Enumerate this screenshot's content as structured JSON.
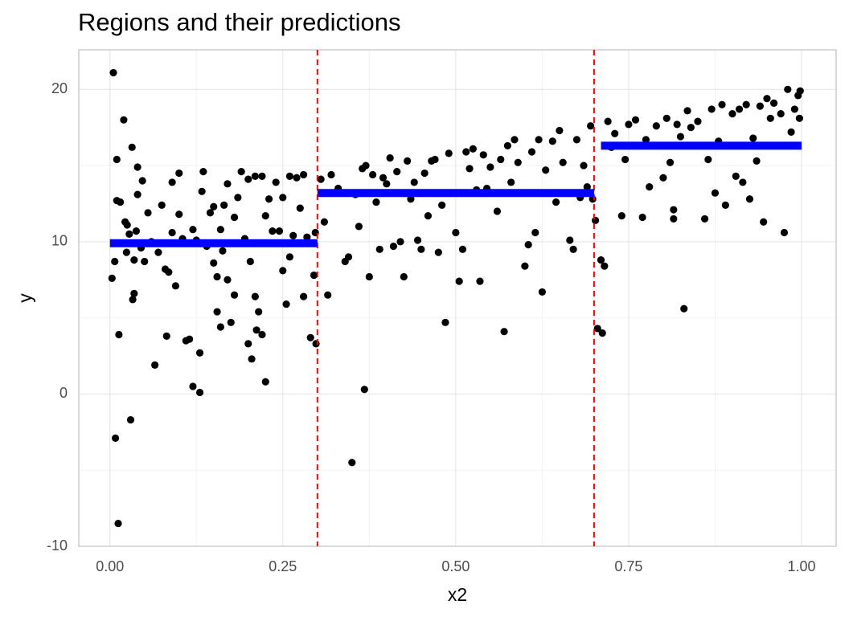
{
  "chart_data": {
    "type": "scatter",
    "title": "Regions and their predictions",
    "x_label": "x2",
    "y_label": "y",
    "color": "#000000",
    "x": [
      0.005,
      0.003,
      0.007,
      0.008,
      0.01,
      0.01,
      0.012,
      0.013,
      0.015,
      0.02,
      0.022,
      0.024,
      0.025,
      0.028,
      0.03,
      0.032,
      0.033,
      0.035,
      0.035,
      0.038,
      0.04,
      0.04,
      0.045,
      0.047,
      0.05,
      0.055,
      0.06,
      0.065,
      0.07,
      0.075,
      0.08,
      0.082,
      0.085,
      0.09,
      0.09,
      0.095,
      0.1,
      0.1,
      0.105,
      0.11,
      0.115,
      0.12,
      0.12,
      0.125,
      0.13,
      0.13,
      0.133,
      0.135,
      0.14,
      0.145,
      0.15,
      0.15,
      0.155,
      0.155,
      0.16,
      0.16,
      0.163,
      0.165,
      0.17,
      0.17,
      0.175,
      0.18,
      0.18,
      0.185,
      0.19,
      0.19,
      0.195,
      0.2,
      0.2,
      0.203,
      0.205,
      0.21,
      0.21,
      0.212,
      0.215,
      0.22,
      0.22,
      0.225,
      0.225,
      0.23,
      0.235,
      0.24,
      0.245,
      0.25,
      0.25,
      0.255,
      0.26,
      0.26,
      0.265,
      0.27,
      0.275,
      0.28,
      0.28,
      0.285,
      0.29,
      0.295,
      0.298,
      0.297,
      0.305,
      0.31,
      0.315,
      0.32,
      0.33,
      0.34,
      0.345,
      0.35,
      0.355,
      0.36,
      0.365,
      0.368,
      0.37,
      0.375,
      0.38,
      0.385,
      0.39,
      0.395,
      0.4,
      0.405,
      0.41,
      0.415,
      0.42,
      0.425,
      0.43,
      0.435,
      0.44,
      0.445,
      0.45,
      0.455,
      0.46,
      0.465,
      0.47,
      0.475,
      0.48,
      0.485,
      0.49,
      0.5,
      0.505,
      0.51,
      0.515,
      0.52,
      0.525,
      0.53,
      0.535,
      0.54,
      0.545,
      0.55,
      0.56,
      0.565,
      0.57,
      0.575,
      0.58,
      0.585,
      0.59,
      0.6,
      0.605,
      0.61,
      0.615,
      0.62,
      0.625,
      0.63,
      0.64,
      0.645,
      0.65,
      0.655,
      0.66,
      0.665,
      0.67,
      0.675,
      0.68,
      0.685,
      0.69,
      0.695,
      0.698,
      0.702,
      0.705,
      0.71,
      0.712,
      0.715,
      0.72,
      0.725,
      0.73,
      0.74,
      0.745,
      0.75,
      0.76,
      0.77,
      0.775,
      0.78,
      0.79,
      0.8,
      0.805,
      0.81,
      0.815,
      0.815,
      0.82,
      0.825,
      0.83,
      0.835,
      0.84,
      0.85,
      0.86,
      0.865,
      0.87,
      0.875,
      0.88,
      0.885,
      0.89,
      0.9,
      0.905,
      0.91,
      0.915,
      0.92,
      0.925,
      0.93,
      0.935,
      0.94,
      0.945,
      0.95,
      0.955,
      0.96,
      0.97,
      0.975,
      0.98,
      0.985,
      0.99,
      0.995,
      0.998,
      0.997
    ],
    "values": [
      21.1,
      7.6,
      8.7,
      -2.9,
      15.4,
      12.7,
      -8.5,
      3.9,
      12.6,
      18,
      11.3,
      9.3,
      11.1,
      10.5,
      -1.7,
      16.2,
      6.2,
      8.8,
      6.6,
      10.7,
      13.1,
      14.9,
      9.6,
      14,
      8.7,
      11.9,
      10,
      1.9,
      9.3,
      12.4,
      8.2,
      3.8,
      8,
      13.9,
      10.6,
      7.1,
      14.5,
      11.8,
      10.2,
      3.5,
      3.6,
      0.5,
      10.8,
      10.1,
      2.7,
      0.1,
      13.3,
      14.6,
      9.7,
      11.9,
      8.6,
      12.3,
      5.4,
      7.7,
      4.4,
      10.8,
      9.4,
      12.4,
      13.8,
      7.5,
      4.7,
      6.5,
      11.6,
      12.9,
      14.6,
      9.9,
      10.2,
      3.3,
      14.1,
      8.7,
      2.3,
      6.4,
      14.3,
      4.2,
      5.4,
      3.9,
      14.3,
      0.8,
      11.7,
      12.8,
      10.7,
      13.9,
      10.7,
      8.1,
      12.9,
      5.9,
      14.3,
      9,
      10.4,
      14.2,
      12.2,
      14.4,
      6.4,
      10.3,
      3.7,
      7.8,
      3.3,
      10.6,
      14.1,
      11.3,
      6.5,
      14.4,
      13.5,
      8.7,
      9,
      -4.5,
      13.1,
      11,
      14.8,
      0.3,
      15,
      7.7,
      14.4,
      12.6,
      9.5,
      14.2,
      13.8,
      15.5,
      9.7,
      14.6,
      10,
      7.7,
      15.3,
      12.8,
      13.9,
      10.1,
      9.5,
      14.5,
      11.7,
      15.3,
      15.4,
      9.3,
      12.4,
      4.7,
      15.8,
      10.6,
      7.4,
      9.5,
      15.9,
      14.8,
      16.1,
      13.4,
      7.4,
      15.7,
      13.5,
      14.9,
      12,
      15.4,
      4.1,
      16.3,
      13.9,
      16.7,
      15.2,
      8.4,
      9.8,
      15.9,
      10.6,
      16.7,
      6.7,
      14.7,
      16.6,
      12.6,
      17.3,
      15.2,
      13.2,
      10.1,
      9.5,
      16.7,
      12.9,
      15,
      13.6,
      17.6,
      12.8,
      11.4,
      4.3,
      8.8,
      4,
      8.4,
      17.9,
      16.2,
      17.1,
      11.7,
      15.4,
      17.7,
      18,
      11.6,
      16.7,
      13.6,
      17.6,
      14.2,
      18.1,
      15.2,
      12.1,
      11.5,
      17.7,
      16.9,
      5.6,
      18.6,
      17.5,
      17.9,
      11.5,
      15.4,
      18.7,
      13.2,
      16.6,
      19,
      12.4,
      18.4,
      14.3,
      18.7,
      13.9,
      19,
      12.8,
      16.8,
      15.3,
      18.9,
      11.3,
      19.4,
      18.1,
      19.1,
      18.4,
      10.6,
      20,
      17.2,
      18.7,
      19.6,
      19.9,
      18.1
    ],
    "predictions": {
      "color": "#0000ff",
      "segments": [
        {
          "x": [
            0,
            0.3
          ],
          "y": 9.9
        },
        {
          "x": [
            0.3,
            0.7
          ],
          "y": 13.2
        },
        {
          "x": [
            0.71,
            1.0
          ],
          "y": 16.3
        }
      ]
    },
    "splits": {
      "color": "#ff0000",
      "x": [
        0.3,
        0.7
      ]
    },
    "xlim": [
      -0.045,
      1.05
    ],
    "ylim": [
      -10,
      22.6
    ],
    "xticks": [
      {
        "value": 0,
        "label": "0.00"
      },
      0.25,
      {
        "value": 0.5,
        "label": "0.50"
      },
      0.75,
      {
        "value": 1,
        "label": "1.00"
      }
    ],
    "yticks": [
      -10,
      0,
      10,
      20
    ],
    "minor_xticks": [
      0.125,
      0.375,
      0.625,
      0.875
    ],
    "minor_yticks": [
      -5,
      5,
      15
    ],
    "grid": true
  }
}
